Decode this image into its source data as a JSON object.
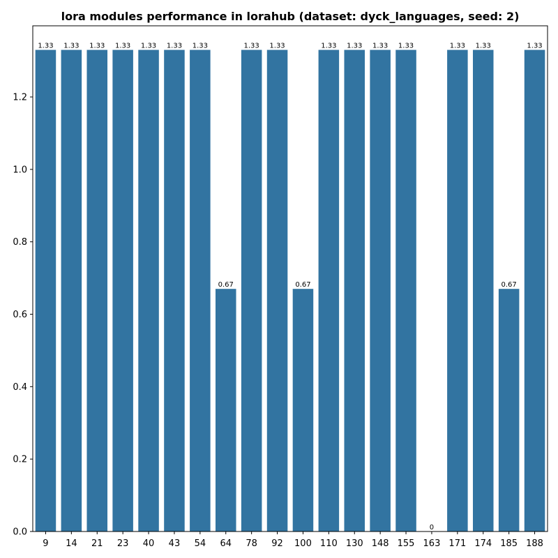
{
  "chart_data": {
    "type": "bar",
    "title": "lora modules performance in lorahub (dataset: dyck_languages, seed: 2)",
    "xlabel": "",
    "ylabel": "",
    "categories": [
      "9",
      "14",
      "21",
      "23",
      "40",
      "43",
      "54",
      "64",
      "78",
      "92",
      "100",
      "110",
      "130",
      "148",
      "155",
      "163",
      "171",
      "174",
      "185",
      "188"
    ],
    "values": [
      1.33,
      1.33,
      1.33,
      1.33,
      1.33,
      1.33,
      1.33,
      0.67,
      1.33,
      1.33,
      0.67,
      1.33,
      1.33,
      1.33,
      1.33,
      0,
      1.33,
      1.33,
      0.67,
      1.33
    ],
    "data_labels": [
      "1.33",
      "1.33",
      "1.33",
      "1.33",
      "1.33",
      "1.33",
      "1.33",
      "0.67",
      "1.33",
      "1.33",
      "0.67",
      "1.33",
      "1.33",
      "1.33",
      "1.33",
      "0",
      "1.33",
      "1.33",
      "0.67",
      "1.33"
    ],
    "yticks": [
      0.0,
      0.2,
      0.4,
      0.6,
      0.8,
      1.0,
      1.2
    ],
    "ytick_labels": [
      "0.0",
      "0.2",
      "0.4",
      "0.6",
      "0.8",
      "1.0",
      "1.2"
    ],
    "ylim": [
      0,
      1.3965
    ],
    "bar_color": "#3274a1",
    "grid": false,
    "legend": "none"
  }
}
